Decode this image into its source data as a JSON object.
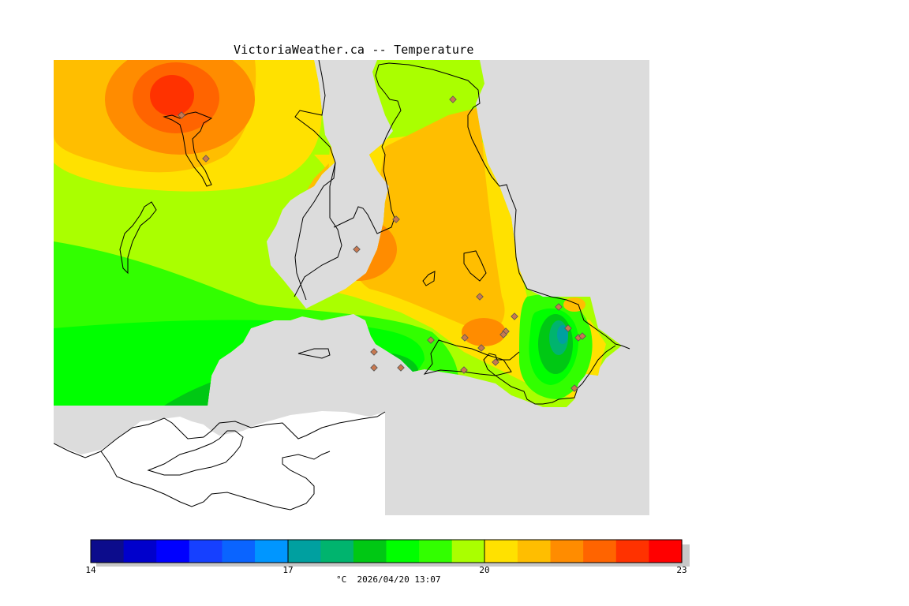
{
  "title": "VictoriaWeather.ca -- Temperature",
  "legend": {
    "min": 14,
    "max": 23,
    "ticks": [
      "14",
      "17",
      "20",
      "23"
    ],
    "caption": "°C  2026/04/20 13:07",
    "colors": [
      "#0c0c8c",
      "#0000cc",
      "#0000ff",
      "#1640ff",
      "#0a64ff",
      "#0096ff",
      "#00a0a0",
      "#00b46e",
      "#00c814",
      "#00ff00",
      "#32ff00",
      "#aaff00",
      "#ffe100",
      "#ffbe00",
      "#ff8c00",
      "#ff6400",
      "#ff3200",
      "#ff0000"
    ]
  },
  "map_colors": {
    "land_grey": "#dcdcdc",
    "usa_white": "#ffffff",
    "station_marker": "#c87850"
  },
  "station_count": 22
}
